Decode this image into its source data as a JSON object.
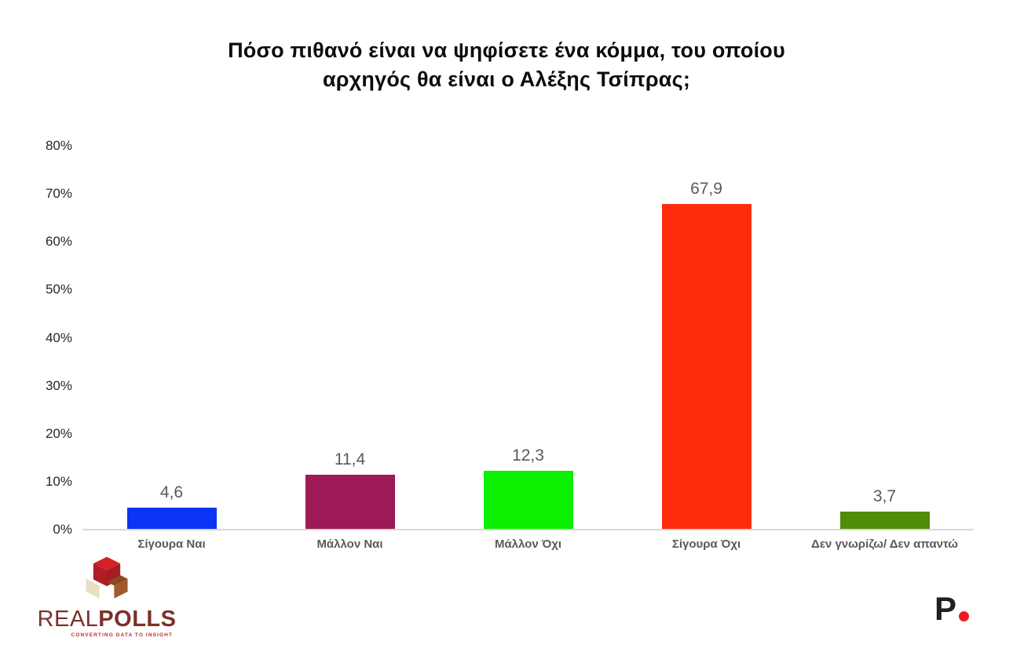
{
  "title": {
    "line1": "Πόσο πιθανό είναι να ψηφίσετε ένα κόμμα, του οποίου",
    "line2": "αρχηγός θα είναι ο Αλέξης Τσίπρας;"
  },
  "chart_data": {
    "type": "bar",
    "title": "Πόσο πιθανό είναι να ψηφίσετε ένα κόμμα, του οποίου αρχηγός θα είναι ο Αλέξης Τσίπρας;",
    "categories": [
      "Σίγουρα Ναι",
      "Μάλλον Ναι",
      "Μάλλον Όχι",
      "Σίγουρα Όχι",
      "Δεν γνωρίζω/ Δεν απαντώ"
    ],
    "values": [
      4.6,
      11.4,
      12.3,
      67.9,
      3.7
    ],
    "value_labels": [
      "4,6",
      "11,4",
      "12,3",
      "67,9",
      "3,7"
    ],
    "bar_colors": [
      "#0b34f4",
      "#9c1a56",
      "#0cf000",
      "#fe2c0b",
      "#4f8c0a"
    ],
    "xlabel": "",
    "ylabel": "",
    "ylim": [
      0,
      80
    ],
    "ytick_step": 10,
    "ytick_labels": [
      "80%",
      "70%",
      "60%",
      "50%",
      "40%",
      "30%",
      "20%",
      "10%",
      "0%"
    ],
    "grid": false,
    "legend": false,
    "axis_line_color": "#d9d9d9",
    "label_color": "#595959"
  },
  "footer": {
    "realpolls": {
      "brand_light": "REAL",
      "brand_bold": "POLLS",
      "tagline": "CONVERTING DATA TO INSIGHT",
      "brand_color": "#7b3128",
      "tagline_color": "#c3272b",
      "cube_colors": {
        "top": "#d42027",
        "left_face": "#b01d23",
        "cream": "#e9debf",
        "brown": "#a05a2c"
      }
    },
    "p_logo": {
      "letter": "P",
      "letter_color": "#231f20",
      "dot_color": "#ec1c23"
    }
  }
}
